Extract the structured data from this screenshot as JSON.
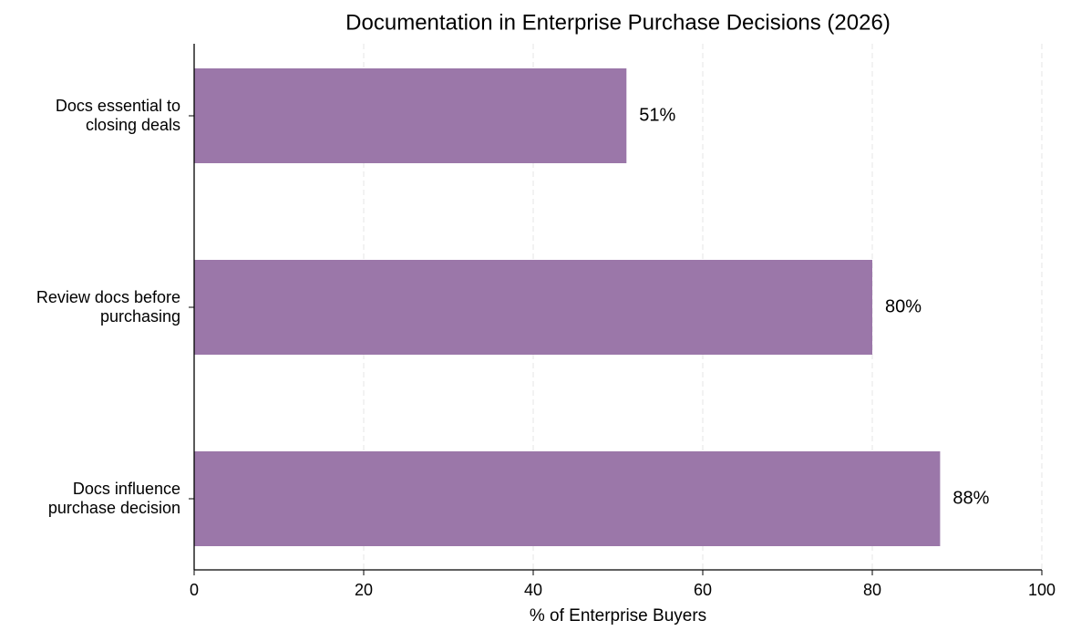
{
  "chart_data": {
    "type": "barh",
    "title": "Documentation in Enterprise Purchase Decisions (2026)",
    "x_label": "% of Enterprise Buyers",
    "categories": [
      "Docs essential to\nclosing deals",
      "Review docs before\npurchasing",
      "Docs influence\npurchase decision"
    ],
    "values": [
      51,
      80,
      88
    ],
    "value_labels": [
      "51%",
      "80%",
      "88%"
    ],
    "color": "#9b77a9",
    "xlim": [
      0,
      100
    ],
    "xticks": [
      0,
      20,
      40,
      60,
      80,
      100
    ],
    "grid": true
  }
}
